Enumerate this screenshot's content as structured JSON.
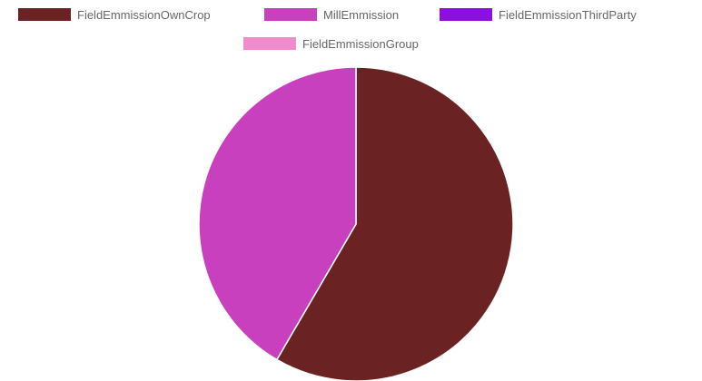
{
  "chart_data": {
    "type": "pie",
    "series": [
      {
        "labels": [
          "FieldEmmissionOwnCrop",
          "MillEmmission",
          "FieldEmmissionThirdParty",
          "FieldEmmissionGroup"
        ],
        "values": [
          58.4,
          41.6,
          0,
          0
        ],
        "unit": "percent",
        "colors": [
          "#6b2222",
          "#c840bd",
          "#8b10e0",
          "#f08ccc"
        ]
      }
    ],
    "legend": {
      "position": "top",
      "entries": [
        {
          "label": "FieldEmmissionOwnCrop",
          "color": "#6b2222"
        },
        {
          "label": "MillEmmission",
          "color": "#c840bd"
        },
        {
          "label": "FieldEmmissionThirdParty",
          "color": "#8b10e0"
        },
        {
          "label": "FieldEmmissionGroup",
          "color": "#f08ccc"
        }
      ]
    }
  }
}
